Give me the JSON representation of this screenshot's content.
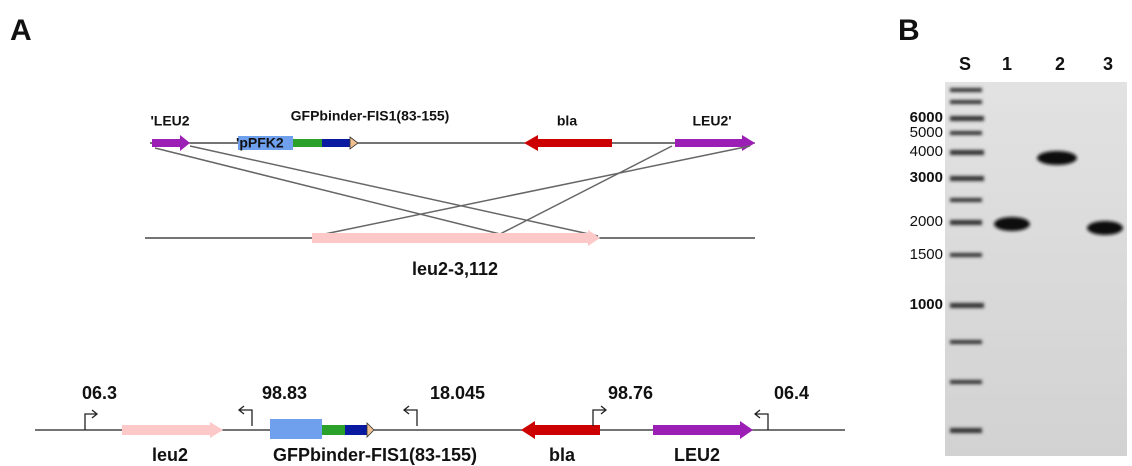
{
  "panel_a": {
    "label": "A",
    "plasmid_labels": [
      "'LEU2",
      "GFPbinder-FIS1(83-155)",
      "bla",
      "LEU2'",
      "'pPFK2"
    ],
    "locus_label": "leu2-3,112",
    "primers": [
      "06.3",
      "98.83",
      "18.045",
      "98.76",
      "06.4"
    ],
    "genes": [
      "leu2",
      "GFPbinder-FIS1(83-155)",
      "bla",
      "LEU2"
    ]
  },
  "panel_b": {
    "label": "B",
    "lanes": [
      "S",
      "1",
      "2",
      "3"
    ],
    "markers": [
      "6000",
      "5000",
      "4000",
      "3000",
      "2000",
      "1500",
      "1000"
    ]
  }
}
